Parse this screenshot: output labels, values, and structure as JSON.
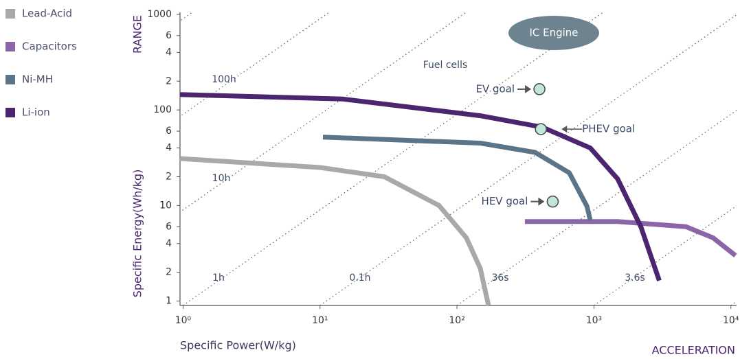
{
  "chart_data": {
    "type": "line",
    "x_label": "Specific Power(W/kg)",
    "y_label": "Specific Energy(Wh/kg)",
    "y_title": "RANGE",
    "x_title": "ACCELERATION",
    "xscale": "log",
    "yscale": "log",
    "xlim": [
      0.95,
      11000
    ],
    "ylim": [
      0.9,
      1050
    ],
    "xticks": [
      {
        "value": 1,
        "label": "10⁰"
      },
      {
        "value": 10,
        "label": "10¹"
      },
      {
        "value": 100,
        "label": "10²"
      },
      {
        "value": 1000,
        "label": "10³"
      },
      {
        "value": 10000,
        "label": "10⁴"
      }
    ],
    "yticks": [
      1,
      2,
      4,
      6,
      10,
      {
        "value": 20,
        "label": "2"
      },
      {
        "value": 40,
        "label": "4"
      },
      {
        "value": 60,
        "label": "6"
      },
      100,
      {
        "value": 200,
        "label": "2"
      },
      {
        "value": 400,
        "label": "4"
      },
      {
        "value": 600,
        "label": "6"
      },
      1000
    ],
    "legend": "left",
    "series": [
      {
        "name": "Lead-Acid",
        "color": "#aba7ad",
        "x": [
          0.95,
          10,
          29.5,
          74,
          117,
          148,
          170
        ],
        "values": [
          31,
          25,
          20,
          10,
          4.6,
          2.2,
          0.9
        ]
      },
      {
        "name": "Capacitors",
        "color": "#8a66a8",
        "x": [
          313,
          1490,
          4700,
          7400,
          10800
        ],
        "values": [
          6.8,
          6.8,
          6,
          4.6,
          3
        ]
      },
      {
        "name": "Ni-MH",
        "color": "#5b7487",
        "x": [
          10.5,
          148,
          372,
          660,
          890,
          940
        ],
        "values": [
          52,
          45,
          36,
          22,
          9.8,
          7
        ]
      },
      {
        "name": "Li-ion",
        "color": "#4b2570",
        "x": [
          0.95,
          14.7,
          148,
          420,
          940,
          1490,
          2200,
          3000
        ],
        "values": [
          145,
          130,
          87,
          66,
          40,
          19,
          6,
          1.64
        ]
      }
    ],
    "goals": [
      {
        "name": "EV goal",
        "x": 400,
        "y": 165
      },
      {
        "name": "PHEV goal",
        "x": 410,
        "y": 63
      },
      {
        "name": "HEV goal",
        "x": 500,
        "y": 11
      }
    ],
    "goal_color": "#bfe6d8",
    "annotations": [
      "IC Engine",
      "Fuel cells",
      "100h",
      "10h",
      "1h",
      "0.1h",
      "36s",
      "3.6s"
    ]
  }
}
